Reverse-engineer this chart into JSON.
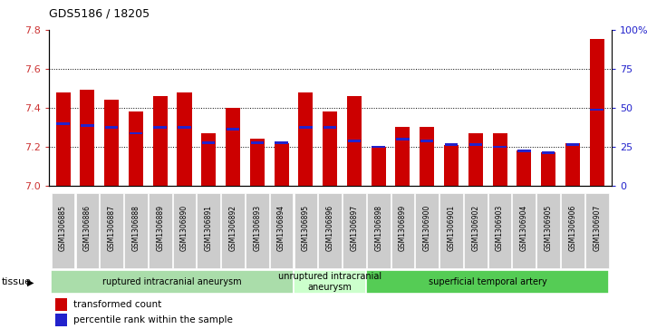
{
  "title": "GDS5186 / 18205",
  "samples": [
    "GSM1306885",
    "GSM1306886",
    "GSM1306887",
    "GSM1306888",
    "GSM1306889",
    "GSM1306890",
    "GSM1306891",
    "GSM1306892",
    "GSM1306893",
    "GSM1306894",
    "GSM1306895",
    "GSM1306896",
    "GSM1306897",
    "GSM1306898",
    "GSM1306899",
    "GSM1306900",
    "GSM1306901",
    "GSM1306902",
    "GSM1306903",
    "GSM1306904",
    "GSM1306905",
    "GSM1306906",
    "GSM1306907"
  ],
  "red_values": [
    7.48,
    7.49,
    7.44,
    7.38,
    7.46,
    7.48,
    7.27,
    7.4,
    7.24,
    7.22,
    7.48,
    7.38,
    7.46,
    7.2,
    7.3,
    7.3,
    7.21,
    7.27,
    7.27,
    7.18,
    7.17,
    7.22,
    7.75
  ],
  "blue_values": [
    7.32,
    7.31,
    7.3,
    7.27,
    7.3,
    7.3,
    7.22,
    7.29,
    7.22,
    7.22,
    7.3,
    7.3,
    7.23,
    7.2,
    7.24,
    7.23,
    7.21,
    7.21,
    7.2,
    7.18,
    7.17,
    7.21,
    7.39
  ],
  "ymin": 7.0,
  "ymax": 7.8,
  "yticks_left": [
    7.0,
    7.2,
    7.4,
    7.6,
    7.8
  ],
  "yticks_right": [
    0,
    25,
    50,
    75,
    100
  ],
  "bar_color": "#cc0000",
  "dot_color": "#2222cc",
  "tick_bg": "#cccccc",
  "grid_dotted_at": [
    7.2,
    7.4,
    7.6
  ],
  "group_configs": [
    {
      "start": 0,
      "end": 9,
      "label": "ruptured intracranial aneurysm",
      "color": "#aaddaa"
    },
    {
      "start": 10,
      "end": 12,
      "label": "unruptured intracranial\naneurysm",
      "color": "#ccffcc"
    },
    {
      "start": 13,
      "end": 22,
      "label": "superficial temporal artery",
      "color": "#55cc55"
    }
  ],
  "legend_items": [
    {
      "color": "#cc0000",
      "label": "transformed count"
    },
    {
      "color": "#2222cc",
      "label": "percentile rank within the sample"
    }
  ]
}
